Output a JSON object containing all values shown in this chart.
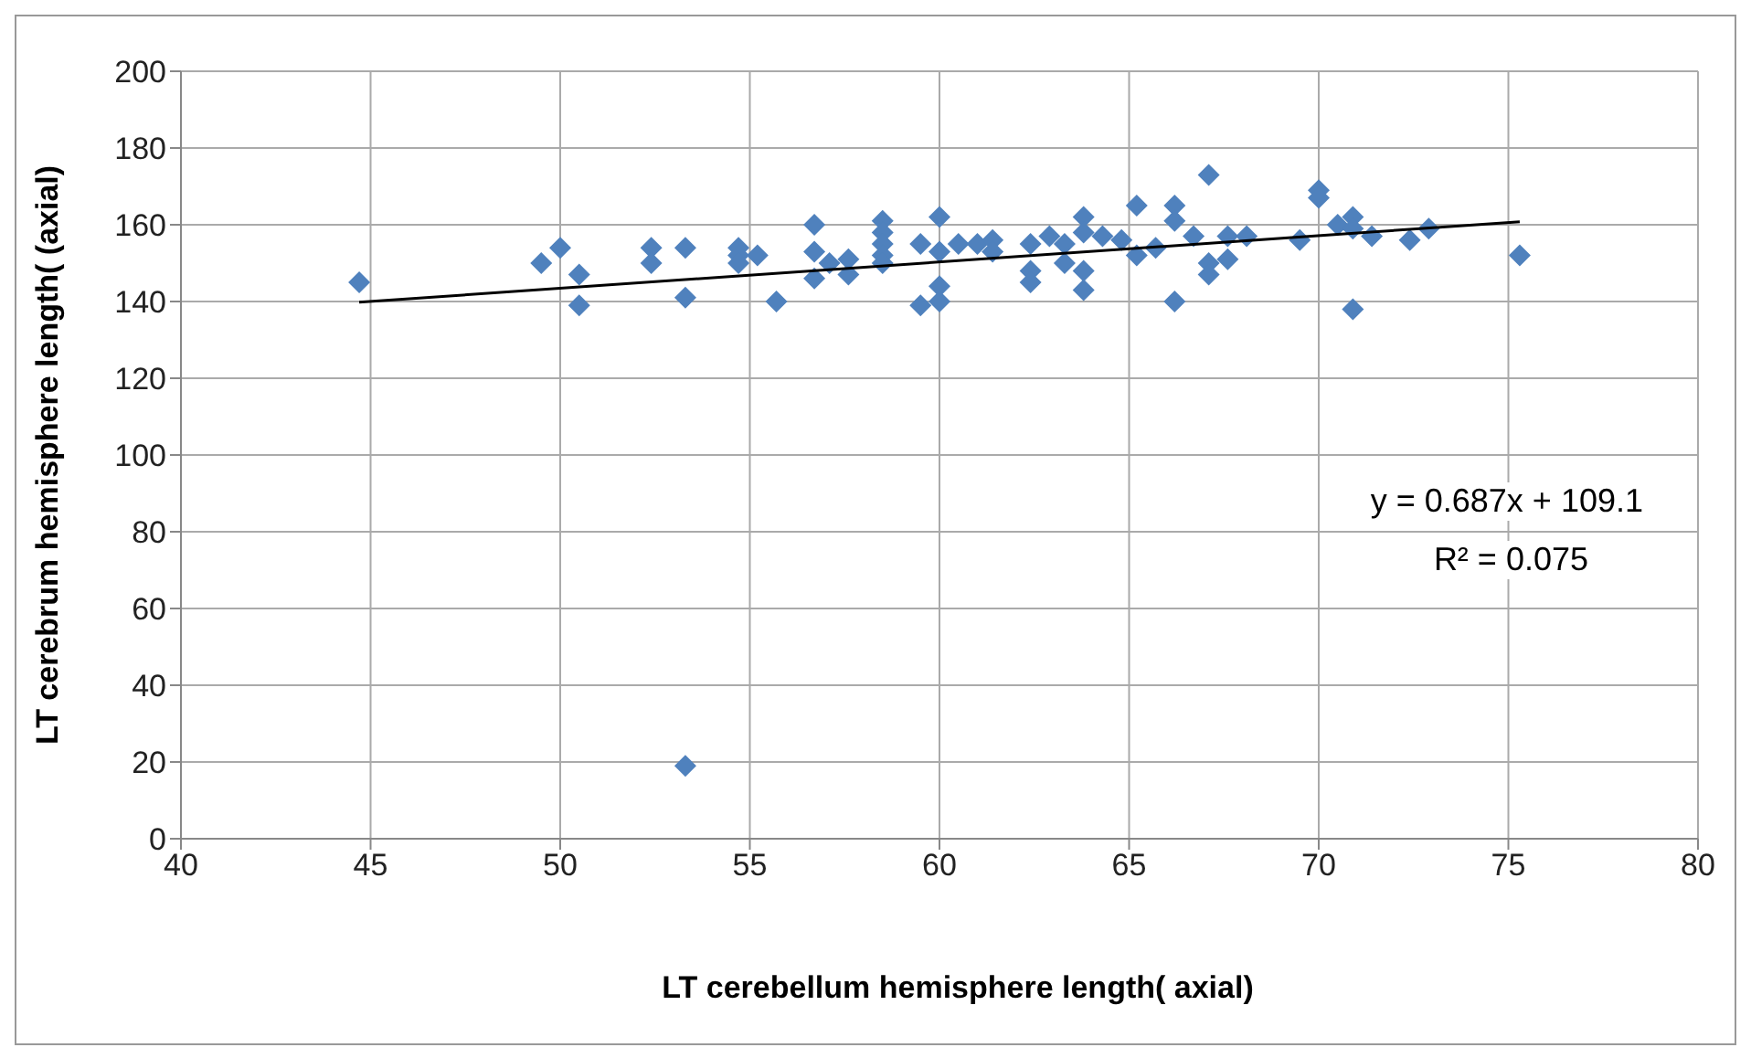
{
  "chart_data": {
    "type": "scatter",
    "xlabel": "LT cerebellum hemisphere length( axial)",
    "ylabel": "LT cerebrum hemisphere length( (axial)",
    "xlim": [
      40,
      80
    ],
    "xticks": [
      40,
      45,
      50,
      55,
      60,
      65,
      70,
      75,
      80
    ],
    "ylim": [
      0,
      200
    ],
    "yticks": [
      0,
      20,
      40,
      60,
      80,
      100,
      120,
      140,
      160,
      180,
      200
    ],
    "grid": true,
    "annotations": [
      "y = 0.687x + 109.1",
      "R² = 0.075"
    ],
    "series": [
      {
        "type": "scatter",
        "color": "#4f81bd",
        "marker": "diamond",
        "x": [
          44.7,
          49.5,
          50,
          50.5,
          50.5,
          52.4,
          52.4,
          53.3,
          53.3,
          53.3,
          54.7,
          54.7,
          54.7,
          55.2,
          55.7,
          56.7,
          56.7,
          56.7,
          57.1,
          57.6,
          57.6,
          58.5,
          58.5,
          58.5,
          58.5,
          58.5,
          59.5,
          59.5,
          60,
          60,
          60,
          60,
          60.5,
          61,
          61.4,
          61.4,
          62.4,
          62.4,
          62.4,
          62.9,
          63.3,
          63.3,
          63.8,
          63.8,
          63.8,
          63.8,
          64.3,
          64.8,
          65.2,
          65.2,
          65.7,
          66.2,
          66.2,
          66.2,
          66.7,
          67.1,
          67.1,
          67.1,
          67.6,
          67.6,
          68.1,
          69.5,
          70,
          70,
          70.5,
          70.9,
          70.9,
          70.9,
          71.4,
          72.4,
          72.9,
          75.3
        ],
        "values": [
          145,
          150,
          154,
          147,
          139,
          154,
          150,
          154,
          141,
          19,
          154,
          152,
          150,
          152,
          140,
          160,
          153,
          146,
          150,
          151,
          147,
          161,
          158,
          155,
          152,
          150,
          155,
          139,
          162,
          153,
          144,
          140,
          155,
          155,
          156,
          153,
          155,
          148,
          145,
          157,
          155,
          150,
          162,
          158,
          148,
          143,
          157,
          156,
          165,
          152,
          154,
          165,
          161,
          140,
          157,
          173,
          150,
          147,
          157,
          151,
          157,
          156,
          169,
          167,
          160,
          162,
          159,
          138,
          157,
          156,
          159,
          152
        ]
      },
      {
        "type": "line",
        "color": "#000000",
        "marker": "none",
        "x": [
          44.7,
          75.3
        ],
        "values": [
          139.8,
          160.8
        ]
      }
    ]
  }
}
